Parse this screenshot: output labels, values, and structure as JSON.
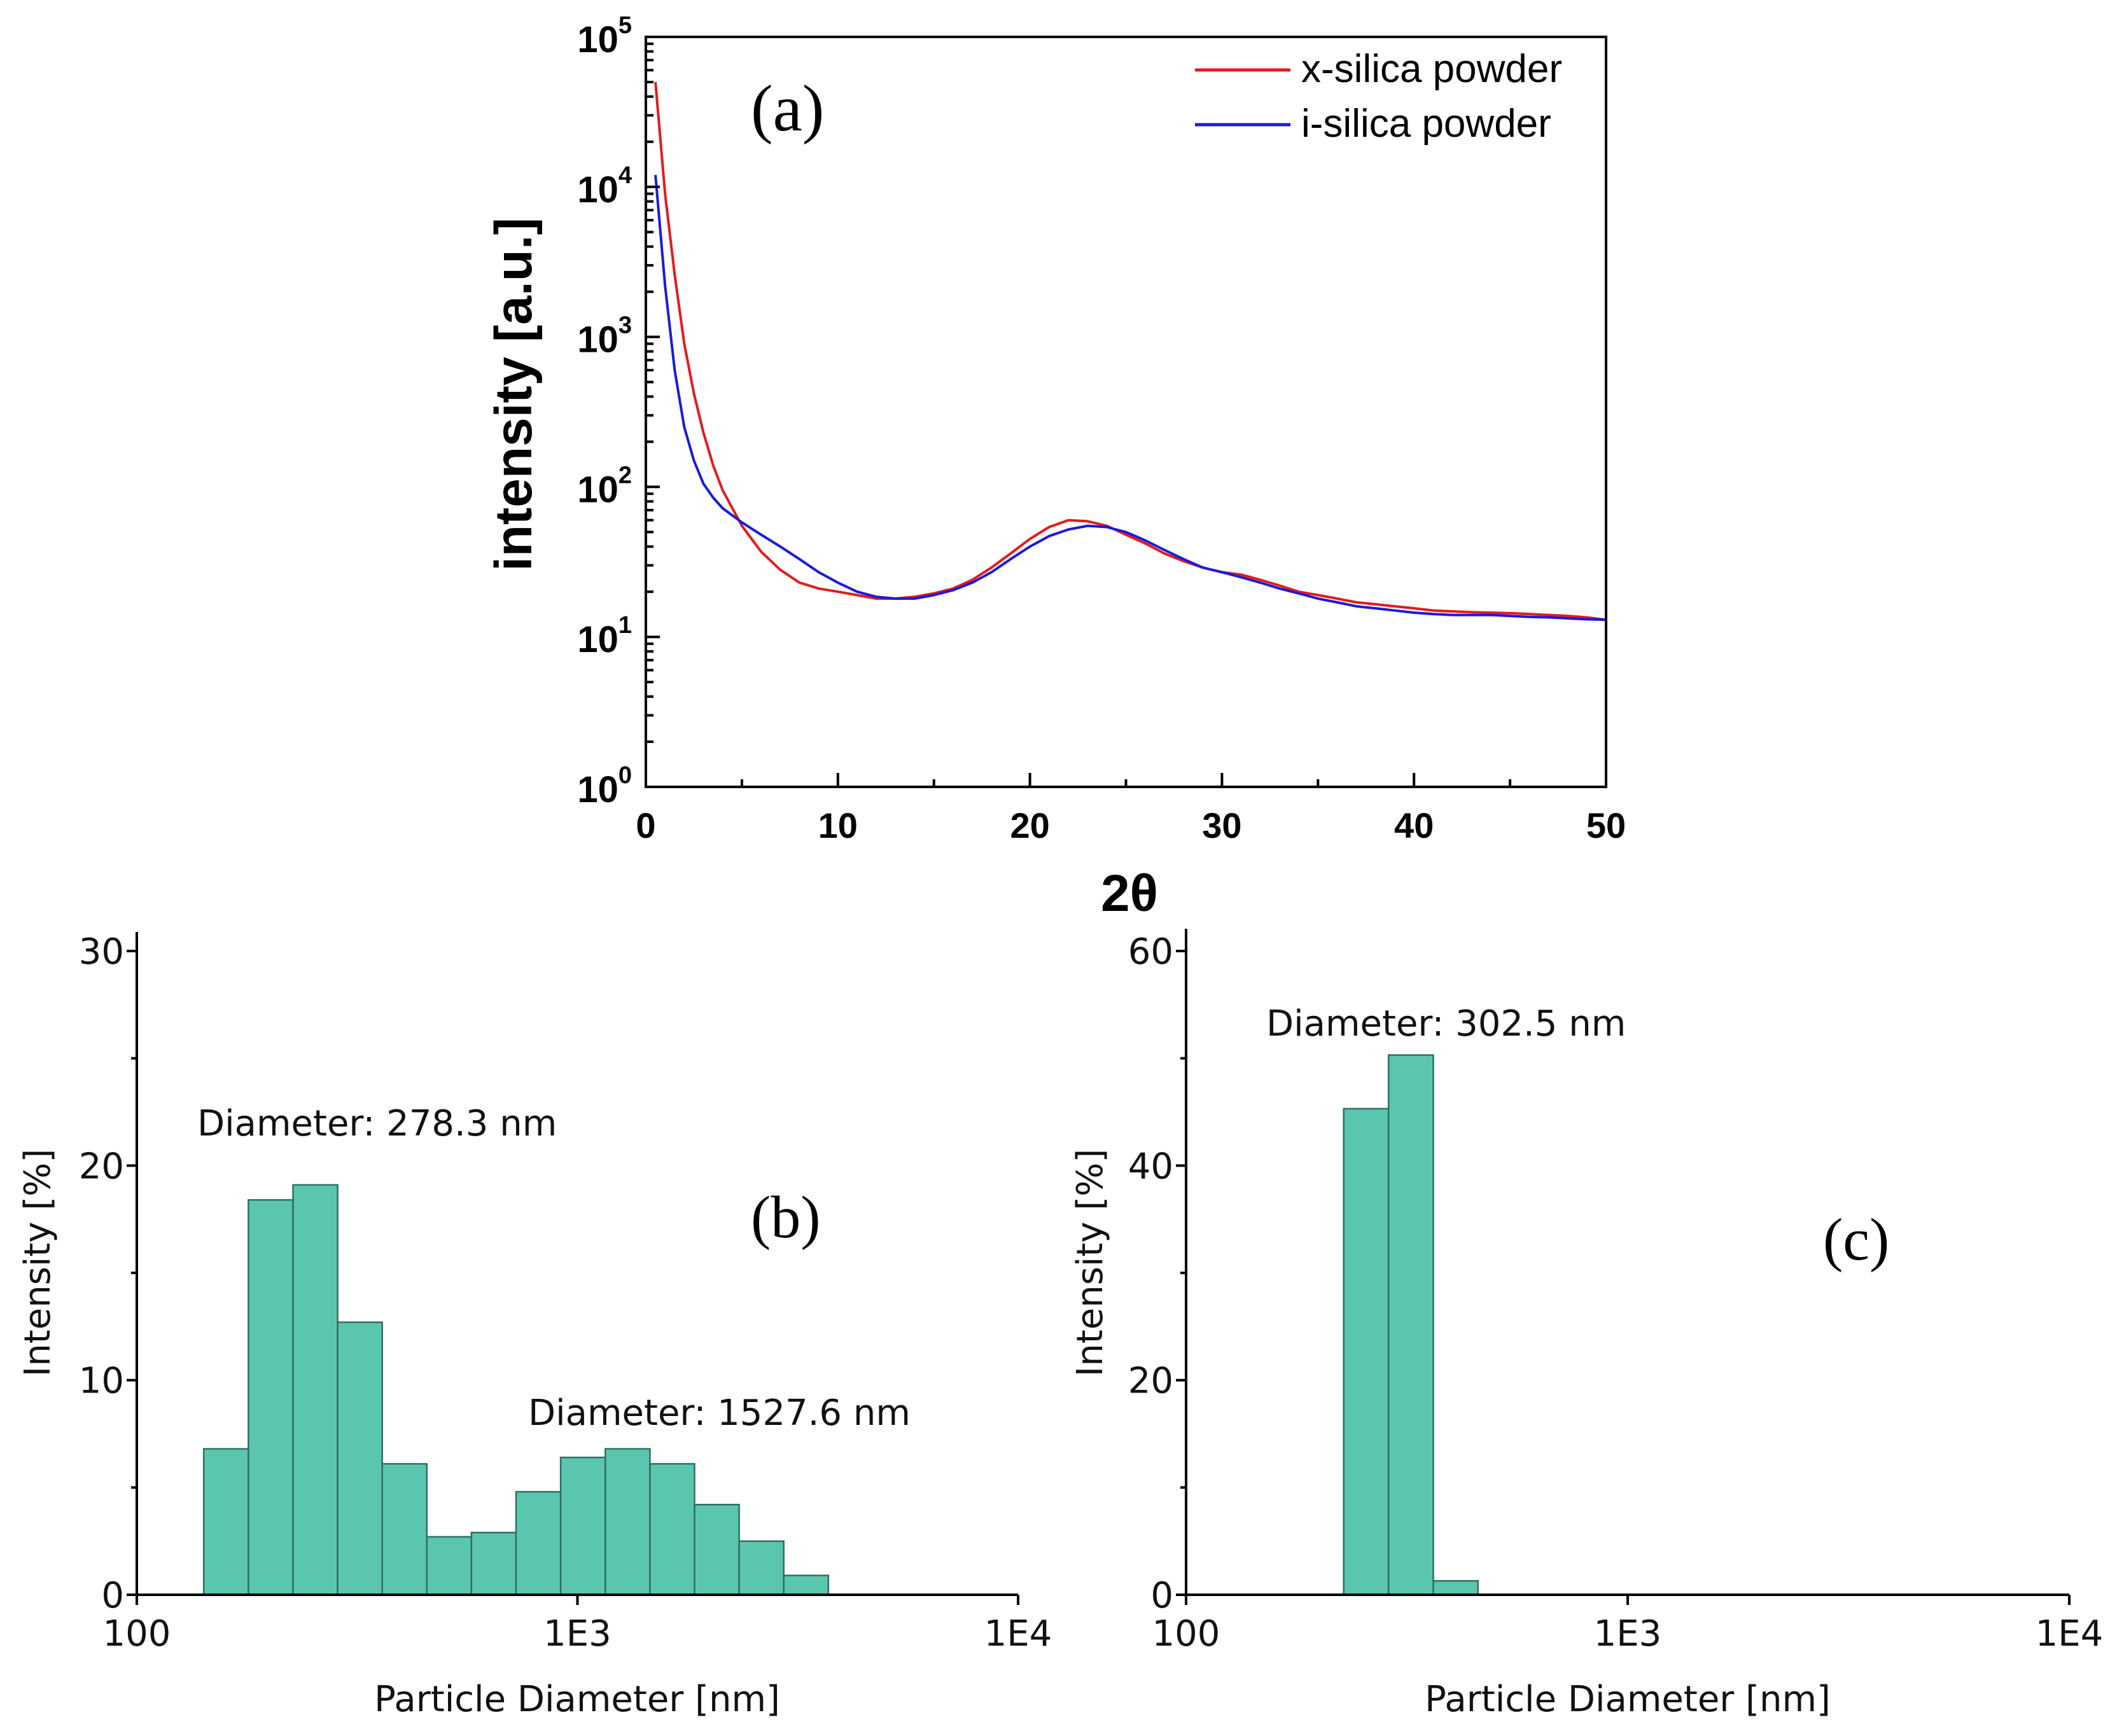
{
  "chart_data": [
    {
      "type": "line",
      "panel_label": "(a)",
      "xlabel": "2θ",
      "ylabel": "intensity [a.u.]",
      "xlim": [
        0,
        50
      ],
      "ylim": [
        1,
        100000
      ],
      "yscale": "log",
      "x_ticks": [
        "0",
        "10",
        "20",
        "30",
        "40",
        "50"
      ],
      "y_ticks": [
        {
          "base": "10",
          "exp": "0"
        },
        {
          "base": "10",
          "exp": "1"
        },
        {
          "base": "10",
          "exp": "2"
        },
        {
          "base": "10",
          "exp": "3"
        },
        {
          "base": "10",
          "exp": "4"
        },
        {
          "base": "10",
          "exp": "5"
        }
      ],
      "legend_position": "top-right",
      "series": [
        {
          "name": "x-silica powder",
          "color": "#e41a1c",
          "x": [
            0.5,
            1,
            1.5,
            2,
            2.5,
            3,
            3.5,
            4,
            5,
            6,
            7,
            8,
            9,
            10,
            11,
            12,
            13,
            14,
            15,
            16,
            17,
            18,
            19,
            20,
            21,
            22,
            23,
            24,
            25,
            26,
            27,
            28,
            29,
            30,
            31,
            32,
            33,
            34,
            35,
            36,
            37,
            38,
            39,
            40,
            41,
            42,
            43,
            44,
            45,
            46,
            47,
            48,
            49,
            50
          ],
          "y": [
            50000,
            9000,
            2600,
            900,
            420,
            230,
            140,
            95,
            55,
            37,
            28,
            23,
            21,
            20,
            19,
            18,
            18,
            18.5,
            19.5,
            21,
            24,
            29,
            36,
            45,
            54,
            60,
            59,
            55,
            48,
            42,
            36,
            32,
            29,
            27,
            26,
            24,
            22,
            20,
            19,
            18,
            17,
            16.5,
            16,
            15.5,
            15,
            14.8,
            14.6,
            14.5,
            14.4,
            14.2,
            14,
            13.8,
            13.5,
            13
          ]
        },
        {
          "name": "i-silica powder",
          "color": "#1a1adb",
          "x": [
            0.5,
            1,
            1.5,
            2,
            2.5,
            3,
            3.5,
            4,
            5,
            6,
            7,
            8,
            9,
            10,
            11,
            12,
            13,
            14,
            15,
            16,
            17,
            18,
            19,
            20,
            21,
            22,
            23,
            24,
            25,
            26,
            27,
            28,
            29,
            30,
            31,
            32,
            33,
            34,
            35,
            36,
            37,
            38,
            39,
            40,
            41,
            42,
            43,
            44,
            45,
            46,
            47,
            48,
            49,
            50
          ],
          "y": [
            12000,
            2200,
            600,
            250,
            150,
            105,
            85,
            72,
            58,
            48,
            40,
            33,
            27,
            23,
            20,
            18.5,
            18,
            18,
            19,
            20.5,
            23,
            27,
            33,
            40,
            47,
            52,
            55,
            54,
            50,
            44,
            38,
            33,
            29,
            27,
            25,
            23,
            21,
            19.5,
            18,
            17,
            16,
            15.5,
            15,
            14.5,
            14.2,
            14,
            14,
            14,
            13.8,
            13.6,
            13.5,
            13.3,
            13.1,
            13
          ]
        }
      ]
    },
    {
      "type": "bar",
      "panel_label": "(b)",
      "xlabel": "Particle Diameter [nm]",
      "ylabel": "Intensity [%]",
      "xscale": "log",
      "xlim": [
        100,
        10000
      ],
      "ylim": [
        0,
        30
      ],
      "x_ticks": [
        "100",
        "1E3",
        "1E4"
      ],
      "y_ticks": [
        "0",
        "10",
        "20",
        "30"
      ],
      "annotations": [
        "Diameter: 278.3 nm",
        "Diameter: 1527.6 nm"
      ],
      "bin_edges": [
        141.9,
        179.2,
        226.2,
        285.6,
        360.6,
        455.2,
        574.7,
        725.6,
        916.1,
        1156.6,
        1460.2,
        1843.6,
        2327.5,
        2938.5,
        3710
      ],
      "values": [
        6.8,
        18.4,
        19.1,
        12.7,
        6.1,
        2.7,
        2.9,
        4.8,
        6.4,
        6.8,
        6.1,
        4.2,
        2.5,
        0.9
      ]
    },
    {
      "type": "bar",
      "panel_label": "(c)",
      "xlabel": "Particle Diameter [nm]",
      "ylabel": "Intensity [%]",
      "xscale": "log",
      "xlim": [
        100,
        10000
      ],
      "ylim": [
        0,
        60
      ],
      "x_ticks": [
        "100",
        "1E3",
        "1E4"
      ],
      "y_ticks": [
        "0",
        "20",
        "40",
        "60"
      ],
      "annotations": [
        "Diameter: 302.5 nm"
      ],
      "bin_edges": [
        227.5,
        287.4,
        362.9,
        458.3
      ],
      "values": [
        45.3,
        50.3,
        1.3
      ]
    }
  ]
}
